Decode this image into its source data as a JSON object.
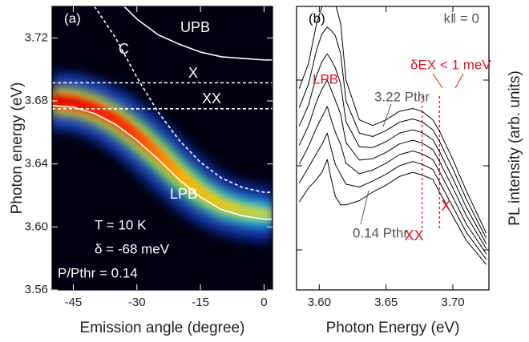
{
  "chart_data": [
    {
      "type": "line",
      "xlabel": "Emission angle (degree)",
      "ylabel": "Photon energy (eV)",
      "xlim": [
        -50,
        2
      ],
      "ylim": [
        3.56,
        3.74
      ],
      "xticks": [
        -45,
        -30,
        -15,
        0
      ],
      "yticks": [
        3.56,
        {
          "value": 3.6,
          "label": "3.60"
        },
        3.64,
        3.68,
        3.72
      ],
      "annotations": [
        "(a)",
        "T = 10 K",
        "δ = -68 meV",
        "P/Pthr = 0.14"
      ],
      "series": [
        {
          "name": "UPB",
          "color": "#ffffff",
          "dashed": false,
          "x": [
            -33,
            -30,
            -25,
            -20,
            -15,
            -10,
            -5,
            0,
            2
          ],
          "values": [
            3.74,
            3.732,
            3.722,
            3.716,
            3.711,
            3.708,
            3.707,
            3.706,
            3.706
          ]
        },
        {
          "name": "C",
          "color": "#ffffff",
          "dashed": true,
          "x": [
            -40,
            -35,
            -30,
            -25,
            -20,
            -15,
            -10,
            -5,
            0,
            2
          ],
          "values": [
            3.74,
            3.72,
            3.695,
            3.673,
            3.655,
            3.641,
            3.631,
            3.625,
            3.622,
            3.622
          ]
        },
        {
          "name": "X",
          "color": "#ffffff",
          "dashed": true,
          "x": [
            -50,
            2
          ],
          "values": [
            3.6915,
            3.6915
          ]
        },
        {
          "name": "XX",
          "color": "#ffffff",
          "dashed": true,
          "x": [
            -50,
            2
          ],
          "values": [
            3.675,
            3.675
          ]
        },
        {
          "name": "LPB",
          "color": "#ffffff",
          "dashed": false,
          "x": [
            -50,
            -45,
            -40,
            -35,
            -30,
            -25,
            -20,
            -15,
            -10,
            -5,
            0,
            2
          ],
          "values": [
            3.677,
            3.676,
            3.672,
            3.665,
            3.655,
            3.643,
            3.63,
            3.619,
            3.611,
            3.607,
            3.605,
            3.605
          ]
        }
      ]
    },
    {
      "type": "line",
      "xlabel": "Photon Energy (eV)",
      "ylabel": "PL intensity (arb. units)",
      "xlim": [
        3.583,
        3.727
      ],
      "ylim": [
        0,
        100
      ],
      "xticks": [
        {
          "value": 3.6,
          "label": "3.60"
        },
        3.65,
        {
          "value": 3.7,
          "label": "3.70"
        }
      ],
      "annotations": [
        "(b)",
        "k‖ = 0",
        "LPB",
        "3.22 Pthr",
        "0.14 Pthr",
        "δEX < 1 meV"
      ],
      "markers": [
        {
          "label": "XX",
          "x": 3.677,
          "color": "#e8141b"
        },
        {
          "label": "X",
          "x": 3.69,
          "color": "#e8141b"
        }
      ],
      "x": [
        3.585,
        3.592,
        3.598,
        3.602,
        3.606,
        3.609,
        3.612,
        3.616,
        3.62,
        3.63,
        3.64,
        3.65,
        3.66,
        3.67,
        3.677,
        3.685,
        3.69,
        3.7,
        3.71,
        3.725
      ],
      "series": [
        {
          "color": "#000000",
          "values": [
            71,
            80,
            94,
            100,
            102,
            102,
            101,
            94,
            74,
            60,
            58,
            60,
            63,
            64,
            63,
            60,
            56,
            46,
            35,
            20
          ]
        },
        {
          "color": "#000000",
          "values": [
            64.3,
            72.7,
            84.8,
            90.3,
            92.7,
            91.5,
            89.7,
            83.3,
            66.7,
            55.3,
            54.1,
            56.2,
            59.2,
            60.3,
            59.3,
            56.5,
            52.4,
            42.7,
            32.1,
            18.2
          ]
        },
        {
          "color": "#000000",
          "values": [
            57.7,
            65.3,
            75.7,
            80.5,
            83.3,
            81,
            78.3,
            72.7,
            59.3,
            50.5,
            50.2,
            52.3,
            55.3,
            56.5,
            55.5,
            53,
            48.8,
            39.3,
            29.2,
            16.3
          ]
        },
        {
          "color": "#000000",
          "values": [
            51,
            58,
            66.5,
            70.8,
            74,
            70.5,
            67,
            62,
            52,
            45.8,
            46.3,
            48.5,
            51.5,
            52.8,
            51.8,
            49.5,
            45.3,
            36,
            26.3,
            14.5
          ]
        },
        {
          "color": "#000000",
          "values": [
            44.3,
            50.7,
            57.3,
            61,
            64.7,
            60,
            55.7,
            51.3,
            44.7,
            41,
            42.3,
            44.7,
            47.7,
            49,
            48,
            46,
            41.7,
            32.7,
            23.3,
            12.7
          ]
        },
        {
          "color": "#000000",
          "values": [
            37.7,
            43.3,
            48.2,
            51.3,
            55.3,
            49.5,
            44.3,
            40.7,
            37.3,
            36.3,
            38.4,
            40.8,
            43.8,
            45.3,
            44.3,
            42.5,
            38.1,
            29.3,
            20.4,
            10.8
          ]
        },
        {
          "color": "#000000",
          "values": [
            31,
            36,
            39,
            41.5,
            46,
            39,
            33,
            30,
            30,
            31.5,
            34.5,
            37,
            40,
            41.5,
            40.5,
            39,
            34.5,
            26,
            17.5,
            9
          ]
        }
      ]
    }
  ]
}
